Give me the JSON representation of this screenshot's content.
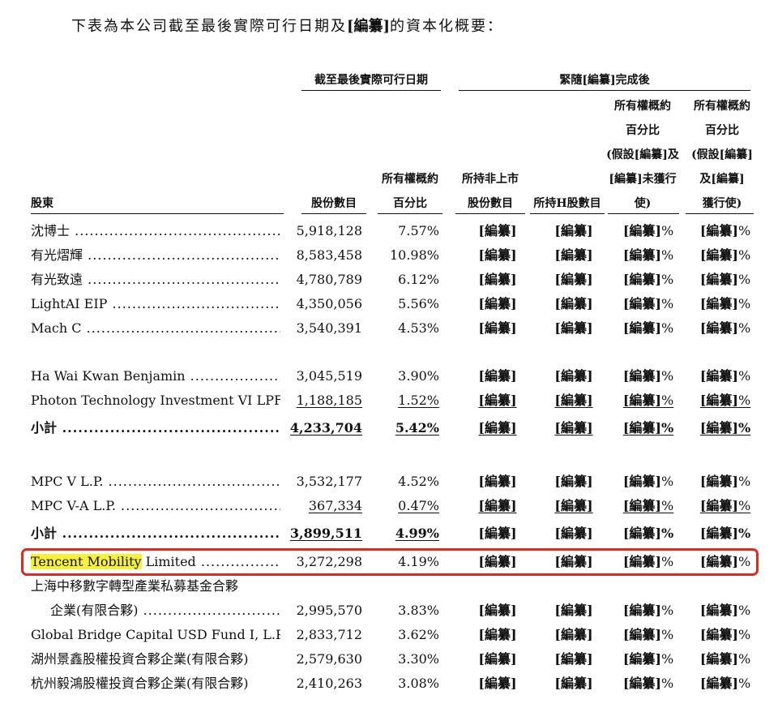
{
  "intro": {
    "prefix": "下表為本公司截至最後實際可行日期及",
    "bold": "[編纂]",
    "suffix": "的資本化概要："
  },
  "headers": {
    "group_left": "截至最後實際可行日期",
    "group_right": "緊隨[編纂]完成後",
    "shareholder": "股東",
    "shares": "股份數目",
    "pct_line1": "所有權概約",
    "pct_line2": "百分比",
    "unlisted_line1": "所持非上市",
    "unlisted_line2": "股份數目",
    "h_shares": "所持H股數目",
    "own_a": [
      "所有權概約",
      "百分比",
      "(假設[編纂]及",
      "[編纂]未獲行",
      "使)"
    ],
    "own_b": [
      "所有權概約",
      "百分比",
      "(假設[編纂]",
      "及[編纂]",
      "獲行使)"
    ]
  },
  "redacted": "[編纂]",
  "pct_sign": "%",
  "rows": [
    {
      "name": "沈博士",
      "shares": "5,918,128",
      "pct": "7.57%"
    },
    {
      "name": "有光熠輝",
      "shares": "8,583,458",
      "pct": "10.98%"
    },
    {
      "name": "有光致遠",
      "shares": "4,780,789",
      "pct": "6.12%"
    },
    {
      "name": "LightAI EIP",
      "shares": "4,350,056",
      "pct": "5.56%"
    },
    {
      "name": "Mach C",
      "shares": "3,540,391",
      "pct": "4.53%"
    },
    {
      "name": "Ha Wai Kwan Benjamin",
      "shares": "3,045,519",
      "pct": "3.90%"
    },
    {
      "name": "Photon Technology Investment VI LPF",
      "shares": "1,188,185",
      "pct": "1.52%"
    },
    {
      "name": "小計",
      "shares": "4,233,704",
      "pct": "5.42%"
    },
    {
      "name": "MPC V L.P.",
      "shares": "3,532,177",
      "pct": "4.52%"
    },
    {
      "name": "MPC V-A L.P.",
      "shares": "367,334",
      "pct": "0.47%"
    },
    {
      "name": "小計",
      "shares": "3,899,511",
      "pct": "4.99%"
    },
    {
      "name_hl": "Tencent Mobility",
      "name_rest": " Limited",
      "shares": "3,272,298",
      "pct": "4.19%"
    },
    {
      "name_line1": "上海中移數字轉型產業私募基金合夥",
      "name": "企業(有限合夥)",
      "shares": "2,995,570",
      "pct": "3.83%"
    },
    {
      "name": "Global Bridge Capital USD Fund I, L.P.",
      "shares": "2,833,712",
      "pct": "3.62%"
    },
    {
      "name": "湖州景鑫股權投資合夥企業(有限合夥)",
      "shares": "2,579,630",
      "pct": "3.30%"
    },
    {
      "name": "杭州毅鴻股權投資合夥企業(有限合夥)",
      "shares": "2,410,263",
      "pct": "3.08%"
    }
  ]
}
